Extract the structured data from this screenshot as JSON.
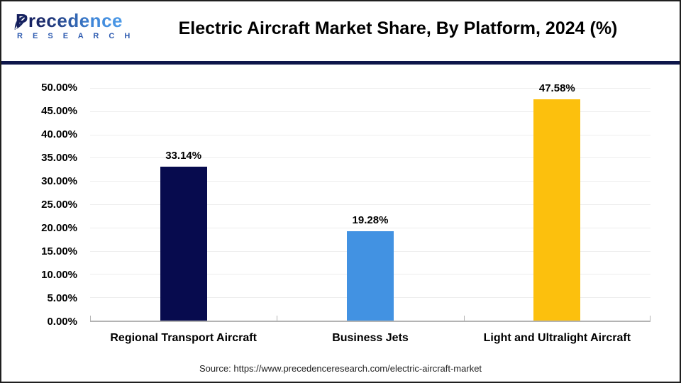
{
  "header": {
    "logo": {
      "name": "Precedence",
      "sub": "R E S E A R C H"
    },
    "title": "Electric Aircraft Market Share, By Platform, 2024 (%)"
  },
  "chart_data": {
    "type": "bar",
    "title": "Electric Aircraft Market Share, By Platform, 2024 (%)",
    "categories": [
      "Regional Transport Aircraft",
      "Business Jets",
      "Light and Ultralight Aircraft"
    ],
    "values": [
      33.14,
      19.28,
      47.58
    ],
    "value_labels": [
      "33.14%",
      "19.28%",
      "47.58%"
    ],
    "bar_colors": [
      "#070b4e",
      "#4292e2",
      "#fcc00d"
    ],
    "ylim": [
      0,
      50
    ],
    "ytick_step": 5,
    "ytick_labels": [
      "0.00%",
      "5.00%",
      "10.00%",
      "15.00%",
      "20.00%",
      "25.00%",
      "30.00%",
      "35.00%",
      "40.00%",
      "45.00%",
      "50.00%"
    ],
    "grid": true,
    "legend": "none",
    "xlabel": "",
    "ylabel": ""
  },
  "footer": {
    "source": "Source: https://www.precedenceresearch.com/electric-aircraft-market"
  },
  "colors": {
    "header_divider": "#0e164a",
    "gridline": "#ededed",
    "axis_line": "#b3b3b3",
    "bar_navy": "#070b4e",
    "bar_blue": "#4292e2",
    "bar_yellow": "#fcc00d"
  }
}
